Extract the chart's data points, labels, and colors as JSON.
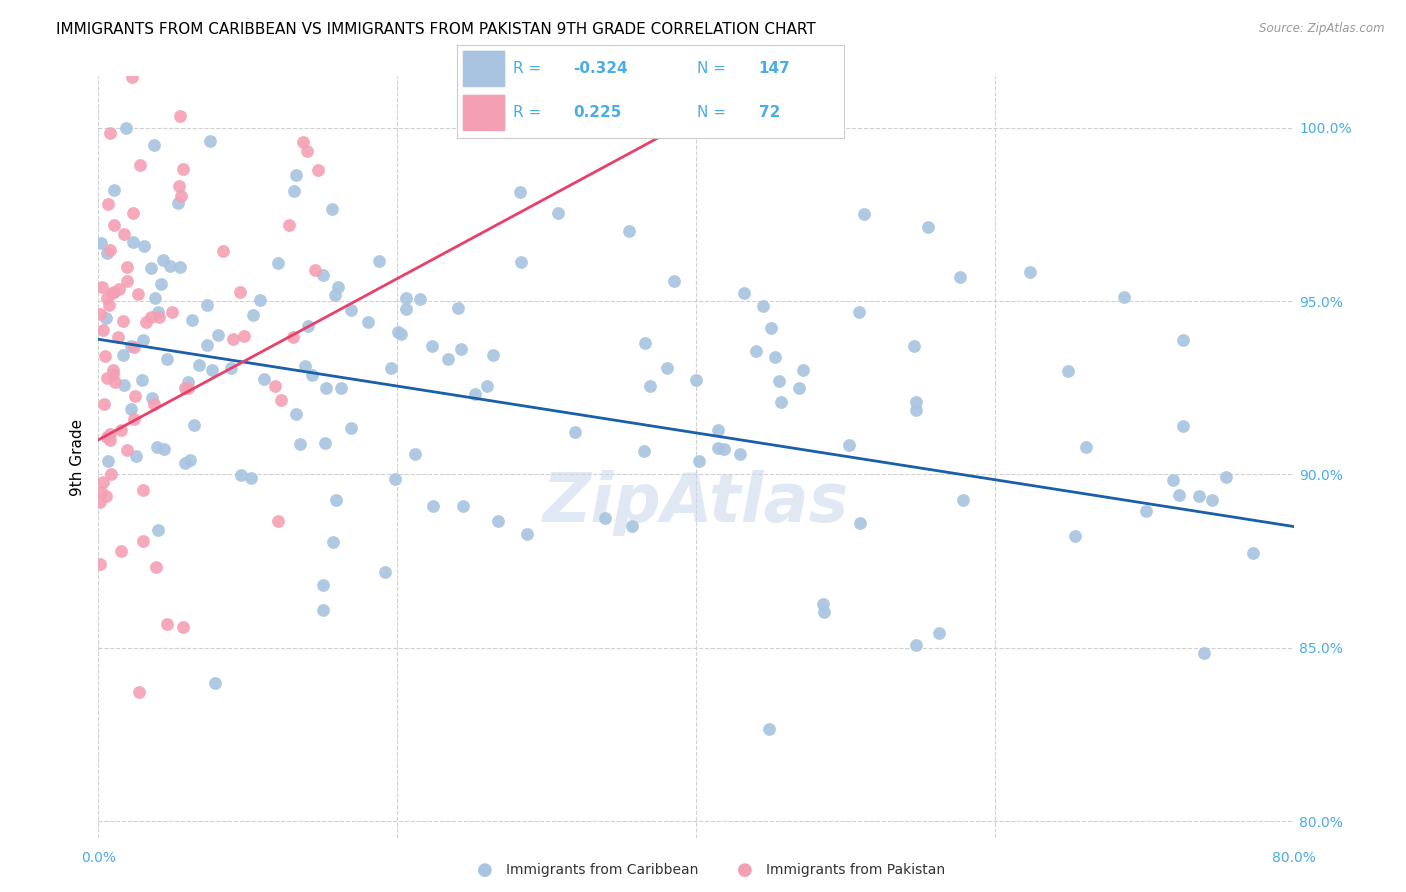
{
  "title": "IMMIGRANTS FROM CARIBBEAN VS IMMIGRANTS FROM PAKISTAN 9TH GRADE CORRELATION CHART",
  "source": "Source: ZipAtlas.com",
  "ylabel": "9th Grade",
  "y_ticks": [
    80.0,
    85.0,
    90.0,
    95.0,
    100.0
  ],
  "xlim": [
    0.0,
    80.0
  ],
  "ylim": [
    79.5,
    101.5
  ],
  "blue_R": -0.324,
  "blue_N": 147,
  "pink_R": 0.225,
  "pink_N": 72,
  "legend_label_blue": "Immigrants from Caribbean",
  "legend_label_pink": "Immigrants from Pakistan",
  "blue_color": "#a8c4e0",
  "pink_color": "#f4a0b4",
  "blue_line_color": "#1a5fa8",
  "pink_line_color": "#e8406a",
  "watermark": "ZipAtlas",
  "title_fontsize": 11,
  "axis_label_fontsize": 10,
  "tick_fontsize": 10,
  "legend_fontsize": 11,
  "watermark_fontsize": 48,
  "watermark_color": "#c8d8ea",
  "watermark_alpha": 0.55,
  "blue_line_x0": 0.0,
  "blue_line_y0": 93.9,
  "blue_line_x1": 80.0,
  "blue_line_y1": 88.5,
  "pink_line_x0": 0.0,
  "pink_line_y0": 91.0,
  "pink_line_x1": 40.0,
  "pink_line_y1": 100.3
}
